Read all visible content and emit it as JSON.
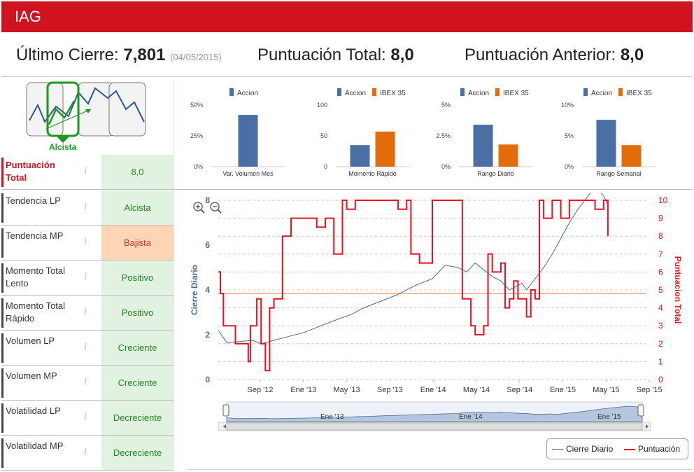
{
  "header": {
    "ticker": "IAG"
  },
  "summary": {
    "last_close_label": "Último Cierre:",
    "last_close_value": "7,801",
    "last_close_date": "(04/05/2015)",
    "total_score_label": "Puntuación Total:",
    "total_score_value": "8,0",
    "prev_score_label": "Puntuación Anterior:",
    "prev_score_value": "8,0"
  },
  "trend": {
    "label": "Alcista"
  },
  "indicators": [
    {
      "name": "Puntuación Total",
      "value": "8,0",
      "state": "green",
      "highlight": true
    },
    {
      "name": "Tendencia LP",
      "value": "Alcista",
      "state": "green"
    },
    {
      "name": "Tendencia MP",
      "value": "Bajista",
      "state": "orange"
    },
    {
      "name": "Momento Total Lento",
      "value": "Positivo",
      "state": "green"
    },
    {
      "name": "Momento Total Rápido",
      "value": "Positivo",
      "state": "green"
    },
    {
      "name": "Volumen LP",
      "value": "Creciente",
      "state": "green"
    },
    {
      "name": "Volumen MP",
      "value": "Creciente",
      "state": "green"
    },
    {
      "name": "Volatilidad LP",
      "value": "Decreciente",
      "state": "green"
    },
    {
      "name": "Volatilidad MP",
      "value": "Decreciente",
      "state": "green"
    }
  ],
  "info_glyph": "i",
  "colors": {
    "accion": "#4a6fa5",
    "ibex": "#e36c0a",
    "red": "#e8101e",
    "green": "#1a9a1a",
    "line": "#4a6b95"
  },
  "chart_data": [
    {
      "type": "bar",
      "title": "",
      "series": [
        {
          "name": "Accion",
          "values": [
            0.42
          ]
        }
      ],
      "categories": [
        "Var. Volumen Mes"
      ],
      "yticks": [
        "50%",
        "25%",
        "0%"
      ],
      "ylim": [
        0,
        0.5
      ]
    },
    {
      "type": "bar",
      "series": [
        {
          "name": "Accion",
          "values": [
            35
          ]
        },
        {
          "name": "IBEX 35",
          "values": [
            57
          ]
        }
      ],
      "categories": [
        "Momento Rápido"
      ],
      "yticks": [
        "100",
        "50",
        "0"
      ],
      "ylim": [
        0,
        100
      ]
    },
    {
      "type": "bar",
      "series": [
        {
          "name": "Accion",
          "values": [
            0.034
          ]
        },
        {
          "name": "IBEX 35",
          "values": [
            0.018
          ]
        }
      ],
      "categories": [
        "Rango Diario"
      ],
      "yticks": [
        "5%",
        "2.5%",
        "0%"
      ],
      "ylim": [
        0,
        0.05
      ]
    },
    {
      "type": "bar",
      "series": [
        {
          "name": "Accion",
          "values": [
            0.076
          ]
        },
        {
          "name": "IBEX 35",
          "values": [
            0.035
          ]
        }
      ],
      "categories": [
        "Rango Semanal"
      ],
      "yticks": [
        "10%",
        "5%",
        "0%"
      ],
      "ylim": [
        0,
        0.1
      ]
    },
    {
      "type": "line",
      "ylabel": "Cierre Diario",
      "y2label": "Puntuacion Total",
      "xticks": [
        "Sep '12",
        "Ene '13",
        "May '13",
        "Sep '13",
        "Ene '14",
        "May '14",
        "Sep '14",
        "Ene '15",
        "May '15",
        "Sep '15"
      ],
      "yticks": [
        "8",
        "6",
        "4",
        "2",
        "0"
      ],
      "y2ticks": [
        "10",
        "9",
        "8",
        "7",
        "6",
        "5",
        "4",
        "3",
        "2",
        "1",
        "0"
      ],
      "ylim": [
        0,
        8
      ],
      "y2lim": [
        0,
        10
      ],
      "reference_line_y2": 4.8,
      "series": [
        {
          "name": "Cierre Diario",
          "x": [
            0,
            0.02,
            0.05,
            0.08,
            0.1,
            0.13,
            0.16,
            0.2,
            0.24,
            0.28,
            0.31,
            0.34,
            0.38,
            0.42,
            0.46,
            0.5,
            0.53,
            0.56,
            0.58,
            0.6,
            0.62,
            0.64,
            0.66,
            0.68,
            0.7,
            0.71,
            0.72,
            0.74,
            0.76,
            0.78,
            0.8,
            0.82,
            0.84,
            0.86,
            0.88,
            0.9,
            0.91
          ],
          "values": [
            2.2,
            1.65,
            1.7,
            1.75,
            1.6,
            1.75,
            1.9,
            2.1,
            2.4,
            2.7,
            2.9,
            3.2,
            3.5,
            3.8,
            4.2,
            4.5,
            5.1,
            5.0,
            4.8,
            5.2,
            4.9,
            4.6,
            4.4,
            4.0,
            4.2,
            4.3,
            4.0,
            4.5,
            5.0,
            5.6,
            6.3,
            7.0,
            7.6,
            8.1,
            8.6,
            8.2,
            7.8
          ]
        },
        {
          "name": "Puntuación",
          "x": [
            0,
            0.005,
            0.012,
            0.04,
            0.07,
            0.075,
            0.09,
            0.1,
            0.11,
            0.12,
            0.13,
            0.15,
            0.16,
            0.17,
            0.2,
            0.23,
            0.25,
            0.27,
            0.29,
            0.3,
            0.32,
            0.34,
            0.36,
            0.39,
            0.41,
            0.42,
            0.44,
            0.45,
            0.47,
            0.5,
            0.52,
            0.54,
            0.56,
            0.57,
            0.59,
            0.6,
            0.62,
            0.63,
            0.64,
            0.66,
            0.67,
            0.68,
            0.69,
            0.7,
            0.71,
            0.72,
            0.73,
            0.74,
            0.75,
            0.76,
            0.78,
            0.8,
            0.82,
            0.84,
            0.86,
            0.88,
            0.9,
            0.91
          ],
          "values": [
            6,
            4.8,
            3,
            2,
            1,
            3,
            4.5,
            2,
            0.5,
            4,
            4.5,
            8,
            8,
            9,
            9,
            8.5,
            9,
            7,
            10,
            9.5,
            10,
            10,
            10,
            10,
            10,
            9.5,
            10,
            7,
            6.5,
            10,
            10,
            10,
            10,
            4.5,
            3,
            2.5,
            3,
            7,
            6,
            6.5,
            4,
            4.5,
            5.5,
            4.5,
            4.5,
            3.5,
            5,
            4.5,
            10,
            9,
            10,
            9,
            10,
            10,
            10,
            9.5,
            10,
            8
          ]
        }
      ]
    }
  ]
}
